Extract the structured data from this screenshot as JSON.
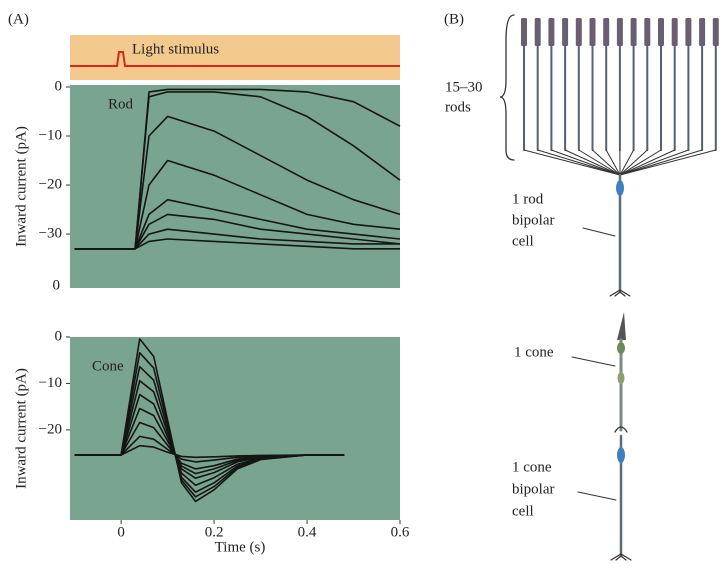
{
  "panel_a": {
    "label": "(A)",
    "stimulus_label": "Light stimulus",
    "x_label": "Time (s)"
  },
  "chart_data": [
    {
      "type": "line",
      "annotation": "Rod",
      "y_label": "Inward current (pA)",
      "axis_note": "0",
      "x": [
        -0.1,
        0.03,
        0.06,
        0.1,
        0.2,
        0.3,
        0.4,
        0.5,
        0.6
      ],
      "xlim": [
        -0.11,
        0.6
      ],
      "ylim": [
        -41,
        0.4
      ],
      "yticks": [
        0,
        {
          "value": -10,
          "label": "−10"
        },
        {
          "value": -20,
          "label": "−20"
        },
        {
          "value": -30,
          "label": "−30"
        }
      ],
      "series": [
        {
          "color": "#151515",
          "values": [
            -33,
            -33,
            -1,
            -0.5,
            -0.5,
            -0.5,
            -1,
            -3,
            -8
          ]
        },
        {
          "color": "#151515",
          "values": [
            -33,
            -33,
            -2,
            -1,
            -1,
            -2,
            -6,
            -12,
            -19
          ]
        },
        {
          "color": "#151515",
          "values": [
            -33,
            -33,
            -10,
            -6,
            -9,
            -14,
            -19,
            -23,
            -26
          ]
        },
        {
          "color": "#151515",
          "values": [
            -33,
            -33,
            -20,
            -15,
            -18,
            -22,
            -26,
            -28,
            -29
          ]
        },
        {
          "color": "#151515",
          "values": [
            -33,
            -33,
            -26,
            -23,
            -25,
            -27,
            -29,
            -30,
            -31
          ]
        },
        {
          "color": "#151515",
          "values": [
            -33,
            -33,
            -28,
            -26,
            -27,
            -29,
            -30,
            -31,
            -32
          ]
        },
        {
          "color": "#151515",
          "values": [
            -33,
            -33,
            -30,
            -29,
            -30,
            -31,
            -31.5,
            -32,
            -32
          ]
        },
        {
          "color": "#151515",
          "values": [
            -33,
            -33,
            -31.5,
            -31,
            -31.5,
            -32,
            -32.5,
            -33,
            -33
          ]
        }
      ]
    },
    {
      "type": "line",
      "annotation": "Cone",
      "y_label": "Inward current (pA)",
      "x": [
        -0.1,
        0,
        0.04,
        0.07,
        0.1,
        0.13,
        0.16,
        0.2,
        0.25,
        0.3,
        0.4,
        0.48
      ],
      "xlim": [
        -0.11,
        0.6
      ],
      "ylim": [
        -39.4,
        0
      ],
      "xticks": [
        0,
        0.2,
        0.4,
        0.6
      ],
      "yticks": [
        0,
        {
          "value": -10,
          "label": "−10"
        },
        {
          "value": -20,
          "label": "−20"
        }
      ],
      "series": [
        {
          "color": "#151515",
          "values": [
            -25.4,
            -25.4,
            -0.4,
            -4.2,
            -17.9,
            -31.4,
            -35.4,
            -32.9,
            -28.4,
            -26.4,
            -25.4,
            -25.4
          ]
        },
        {
          "color": "#151515",
          "values": [
            -25.4,
            -25.4,
            -3.4,
            -6.7,
            -18.8,
            -30.8,
            -34.4,
            -32.2,
            -28.1,
            -26.3,
            -25.4,
            -25.4
          ]
        },
        {
          "color": "#151515",
          "values": [
            -25.4,
            -25.4,
            -6.4,
            -9.3,
            -19.7,
            -30.2,
            -33.4,
            -31.4,
            -27.8,
            -26.2,
            -25.4,
            -25.4
          ]
        },
        {
          "color": "#151515",
          "values": [
            -25.4,
            -25.4,
            -9.4,
            -11.8,
            -20.6,
            -29.3,
            -31.9,
            -30.3,
            -27.4,
            -26.1,
            -25.4,
            -25.4
          ]
        },
        {
          "color": "#151515",
          "values": [
            -25.4,
            -25.4,
            -12.4,
            -14.4,
            -21.5,
            -28.4,
            -30.4,
            -29.2,
            -26.9,
            -25.9,
            -25.4,
            -25.4
          ]
        },
        {
          "color": "#151515",
          "values": [
            -25.4,
            -25.4,
            -15.4,
            -16.9,
            -22.4,
            -27.8,
            -29.4,
            -28.4,
            -26.6,
            -25.8,
            -25.4,
            -25.4
          ]
        },
        {
          "color": "#151515",
          "values": [
            -25.4,
            -25.4,
            -18.4,
            -19.5,
            -23.3,
            -27.2,
            -28.4,
            -27.7,
            -26.3,
            -25.7,
            -25.4,
            -25.4
          ]
        },
        {
          "color": "#151515",
          "values": [
            -25.4,
            -25.4,
            -21.4,
            -22.0,
            -24.2,
            -26.3,
            -26.9,
            -26.5,
            -25.9,
            -25.6,
            -25.4,
            -25.4
          ]
        },
        {
          "color": "#151515",
          "values": [
            -25.4,
            -25.4,
            -23.4,
            -23.7,
            -24.8,
            -25.7,
            -25.9,
            -25.8,
            -25.6,
            -25.5,
            -25.4,
            -25.4
          ]
        }
      ]
    }
  ],
  "panel_b": {
    "label": "(B)",
    "rods_label": [
      "15–30",
      "rods"
    ],
    "rod_bipolar_label": [
      "1 rod",
      "bipolar",
      "cell"
    ],
    "cone_label": "1 cone",
    "cone_bipolar_label": [
      "1 cone",
      "bipolar",
      "cell"
    ]
  }
}
